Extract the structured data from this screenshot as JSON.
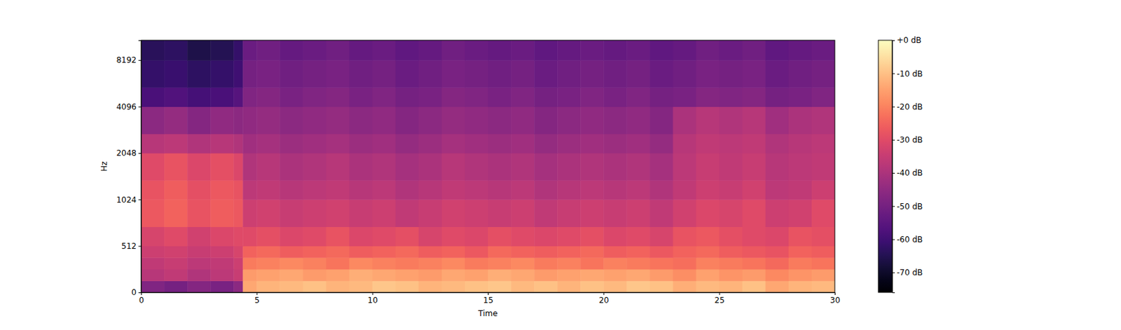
{
  "chart_data": {
    "type": "heatmap",
    "x_label": "Time",
    "y_label": "Hz",
    "xlim": [
      0,
      30
    ],
    "xticks": [
      0,
      5,
      10,
      15,
      20,
      25,
      30
    ],
    "ylim": [
      0,
      11025
    ],
    "yticks": [
      0,
      512,
      1024,
      2048,
      4096,
      8192
    ],
    "log": "y",
    "x_bins": [
      0,
      1,
      2,
      3,
      4,
      4.4,
      5,
      6,
      7,
      8,
      9,
      10,
      11,
      12,
      13,
      14,
      15,
      16,
      17,
      18,
      19,
      20,
      21,
      22,
      23,
      24,
      25,
      26,
      27,
      28,
      29,
      30
    ],
    "y_bins": [
      0,
      128,
      256,
      384,
      512,
      724,
      1024,
      1448,
      2048,
      2896,
      4096,
      5793,
      8192,
      11025
    ],
    "values": [
      [
        -48,
        -50,
        -47,
        -49,
        -46,
        -14,
        -12,
        -11,
        -10,
        -12,
        -11,
        -9,
        -10,
        -12,
        -11,
        -10,
        -9,
        -11,
        -10,
        -12,
        -10,
        -11,
        -9,
        -10,
        -13,
        -11,
        -12,
        -10,
        -14,
        -12,
        -11
      ],
      [
        -38,
        -36,
        -39,
        -37,
        -35,
        -16,
        -15,
        -14,
        -16,
        -15,
        -13,
        -14,
        -15,
        -16,
        -14,
        -15,
        -13,
        -14,
        -16,
        -15,
        -14,
        -15,
        -14,
        -16,
        -18,
        -15,
        -17,
        -16,
        -19,
        -17,
        -16
      ],
      [
        -36,
        -35,
        -37,
        -36,
        -34,
        -21,
        -20,
        -19,
        -20,
        -22,
        -19,
        -20,
        -21,
        -20,
        -19,
        -21,
        -20,
        -19,
        -21,
        -20,
        -22,
        -20,
        -21,
        -22,
        -23,
        -20,
        -21,
        -22,
        -24,
        -21,
        -22
      ],
      [
        -34,
        -33,
        -35,
        -34,
        -32,
        -25,
        -24,
        -26,
        -25,
        -24,
        -26,
        -25,
        -24,
        -26,
        -25,
        -27,
        -24,
        -25,
        -26,
        -25,
        -24,
        -26,
        -25,
        -27,
        -25,
        -24,
        -26,
        -27,
        -28,
        -25,
        -26
      ],
      [
        -32,
        -30,
        -33,
        -31,
        -30,
        -30,
        -29,
        -31,
        -30,
        -28,
        -31,
        -30,
        -29,
        -32,
        -30,
        -31,
        -29,
        -30,
        -31,
        -30,
        -29,
        -31,
        -30,
        -32,
        -28,
        -27,
        -29,
        -30,
        -31,
        -28,
        -29
      ],
      [
        -27,
        -25,
        -28,
        -26,
        -27,
        -34,
        -33,
        -35,
        -34,
        -33,
        -35,
        -34,
        -36,
        -35,
        -33,
        -34,
        -35,
        -34,
        -36,
        -35,
        -34,
        -35,
        -34,
        -36,
        -33,
        -31,
        -32,
        -30,
        -34,
        -33,
        -30
      ],
      [
        -28,
        -26,
        -29,
        -27,
        -28,
        -37,
        -36,
        -38,
        -37,
        -36,
        -38,
        -37,
        -39,
        -38,
        -36,
        -37,
        -38,
        -37,
        -39,
        -38,
        -37,
        -38,
        -37,
        -39,
        -36,
        -34,
        -35,
        -33,
        -37,
        -36,
        -34
      ],
      [
        -30,
        -28,
        -31,
        -29,
        -31,
        -39,
        -38,
        -40,
        -39,
        -38,
        -40,
        -39,
        -41,
        -40,
        -38,
        -39,
        -40,
        -39,
        -41,
        -40,
        -39,
        -40,
        -39,
        -41,
        -37,
        -35,
        -36,
        -35,
        -38,
        -37,
        -36
      ],
      [
        -38,
        -37,
        -39,
        -38,
        -39,
        -42,
        -41,
        -43,
        -42,
        -41,
        -43,
        -42,
        -44,
        -43,
        -41,
        -42,
        -43,
        -42,
        -44,
        -43,
        -42,
        -43,
        -42,
        -44,
        -38,
        -36,
        -37,
        -36,
        -39,
        -38,
        -37
      ],
      [
        -46,
        -44,
        -47,
        -45,
        -46,
        -45,
        -44,
        -46,
        -45,
        -44,
        -46,
        -45,
        -47,
        -46,
        -44,
        -45,
        -46,
        -45,
        -47,
        -46,
        -45,
        -46,
        -45,
        -47,
        -40,
        -38,
        -39,
        -38,
        -42,
        -40,
        -39
      ],
      [
        -58,
        -57,
        -59,
        -58,
        -56,
        -48,
        -47,
        -49,
        -48,
        -47,
        -49,
        -48,
        -50,
        -49,
        -47,
        -48,
        -49,
        -48,
        -50,
        -49,
        -48,
        -49,
        -48,
        -50,
        -49,
        -47,
        -48,
        -47,
        -50,
        -49,
        -48
      ],
      [
        -62,
        -61,
        -63,
        -62,
        -60,
        -50,
        -49,
        -51,
        -50,
        -49,
        -51,
        -50,
        -52,
        -51,
        -49,
        -50,
        -51,
        -50,
        -52,
        -51,
        -50,
        -51,
        -50,
        -52,
        -51,
        -49,
        -50,
        -49,
        -52,
        -51,
        -50
      ],
      [
        -64,
        -63,
        -66,
        -65,
        -62,
        -52,
        -51,
        -53,
        -52,
        -51,
        -53,
        -52,
        -54,
        -53,
        -51,
        -52,
        -53,
        -52,
        -54,
        -53,
        -52,
        -53,
        -52,
        -54,
        -53,
        -51,
        -52,
        -51,
        -54,
        -53,
        -52
      ]
    ],
    "colorbar": {
      "range": [
        -76,
        0
      ],
      "ticks": [
        {
          "value": 0,
          "label": "+0 dB"
        },
        {
          "value": -10,
          "label": "-10 dB"
        },
        {
          "value": -20,
          "label": "-20 dB"
        },
        {
          "value": -30,
          "label": "-30 dB"
        },
        {
          "value": -40,
          "label": "-40 dB"
        },
        {
          "value": -50,
          "label": "-50 dB"
        },
        {
          "value": -60,
          "label": "-60 dB"
        },
        {
          "value": -70,
          "label": "-70 dB"
        }
      ]
    }
  }
}
